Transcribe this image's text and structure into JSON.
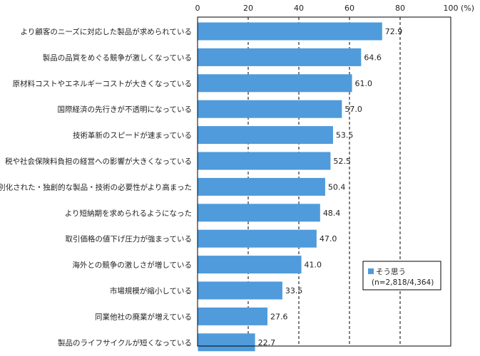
{
  "chart_data": {
    "type": "bar",
    "orientation": "horizontal",
    "title": "",
    "xlabel": "",
    "ylabel": "",
    "x_unit": "(%)",
    "xlim": [
      0,
      100
    ],
    "x_ticks": [
      0,
      20,
      40,
      60,
      80,
      100
    ],
    "grid": "dashed vertical lines at 20, 40, 60, 80",
    "legend_position": "bottom-right",
    "categories": [
      "より顧客のニーズに対応した製品が求められている",
      "製品の品質をめぐる競争が激しくなっている",
      "原材料コストやエネルギーコストが大きくなっている",
      "国際経済の先行きが不透明になっている",
      "技術革新のスピードが速まっている",
      "税や社会保険料負担の経営への影響が大きくなっている",
      "差別化された・独創的な製品・技術の必要性がより高まった",
      "より短納期を求められるようになった",
      "取引価格の値下げ圧力が強まっている",
      "海外との競争の激しさが増している",
      "市場規模が縮小している",
      "同業他社の廃業が増えている",
      "製品のライフサイクルが短くなっている"
    ],
    "series": [
      {
        "name": "そう思う",
        "legend_note": "(n=2,818/4,364)",
        "color": "#4f9bdc",
        "values": [
          72.9,
          64.6,
          61.0,
          57.0,
          53.5,
          52.5,
          50.4,
          48.4,
          47.0,
          41.0,
          33.5,
          27.6,
          22.7
        ],
        "labels": [
          "72.9",
          "64.6",
          "61.0",
          "57.0",
          "53.5",
          "52.5",
          "50.4",
          "48.4",
          "47.0",
          "41.0",
          "33.5",
          "27.6",
          "22.7"
        ]
      }
    ]
  }
}
